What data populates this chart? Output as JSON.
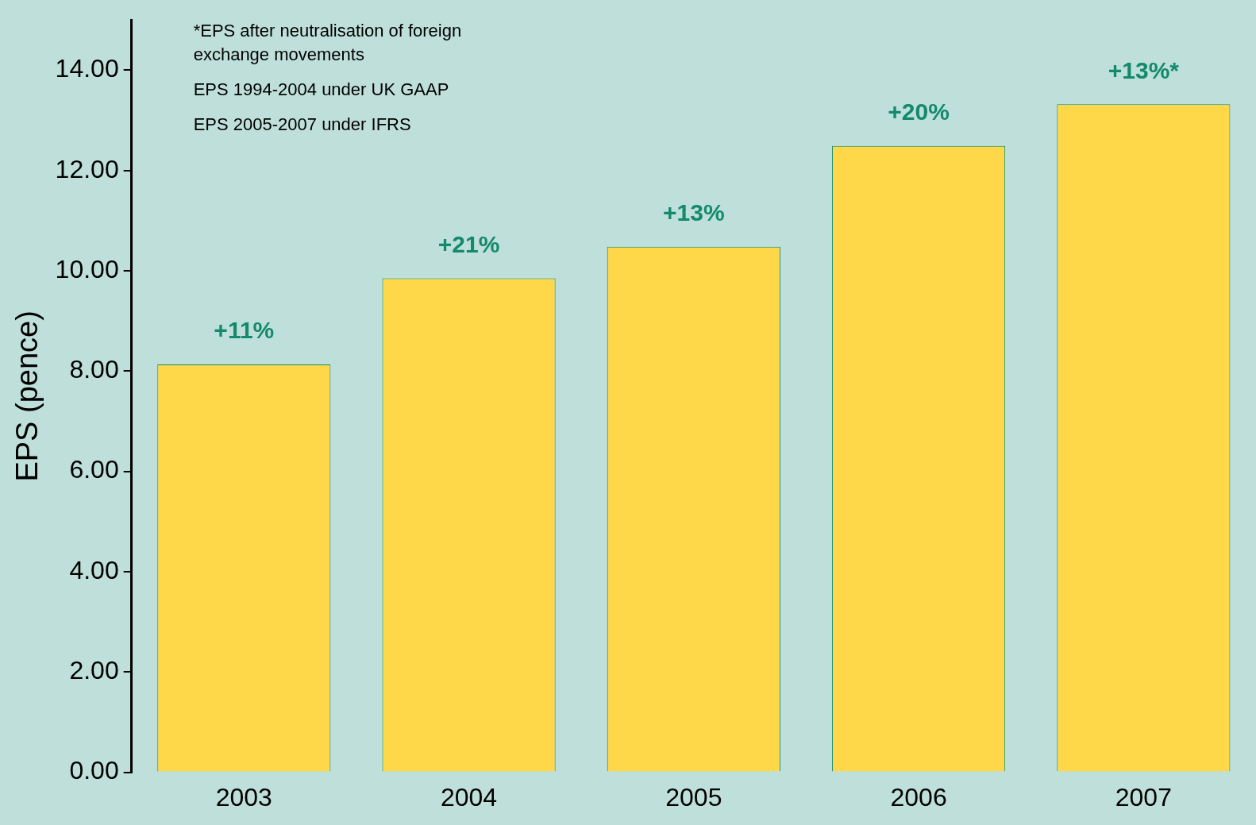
{
  "chart_data": {
    "type": "bar",
    "ylabel": "EPS (pence)",
    "categories": [
      "2003",
      "2004",
      "2005",
      "2006",
      "2007"
    ],
    "values": [
      8.13,
      9.85,
      10.48,
      12.49,
      13.32
    ],
    "color": "#ffd84a",
    "ylim": [
      0,
      15
    ],
    "yticks": [
      {
        "value": 0,
        "label": "0.00"
      },
      {
        "value": 2,
        "label": "2.00"
      },
      {
        "value": 4,
        "label": "4.00"
      },
      {
        "value": 6,
        "label": "6.00"
      },
      {
        "value": 8,
        "label": "8.00"
      },
      {
        "value": 10,
        "label": "10.00"
      },
      {
        "value": 12,
        "label": "12.00"
      },
      {
        "value": 14,
        "label": "14.00"
      }
    ],
    "grid": false,
    "legend": false,
    "annotations": [
      "*EPS after neutralisation of foreign exchange movements",
      "EPS 1994-2004 under UK GAAP",
      "EPS 2005-2007 under IFRS",
      {
        "text": "+11%",
        "x": "2003",
        "y": 8.13
      },
      {
        "text": "+21%",
        "x": "2004",
        "y": 9.85
      },
      {
        "text": "+13%",
        "x": "2005",
        "y": 10.48
      },
      {
        "text": "+20%",
        "x": "2006",
        "y": 12.49
      },
      {
        "text": "+13%*",
        "x": "2007",
        "y": 13.32
      }
    ]
  }
}
